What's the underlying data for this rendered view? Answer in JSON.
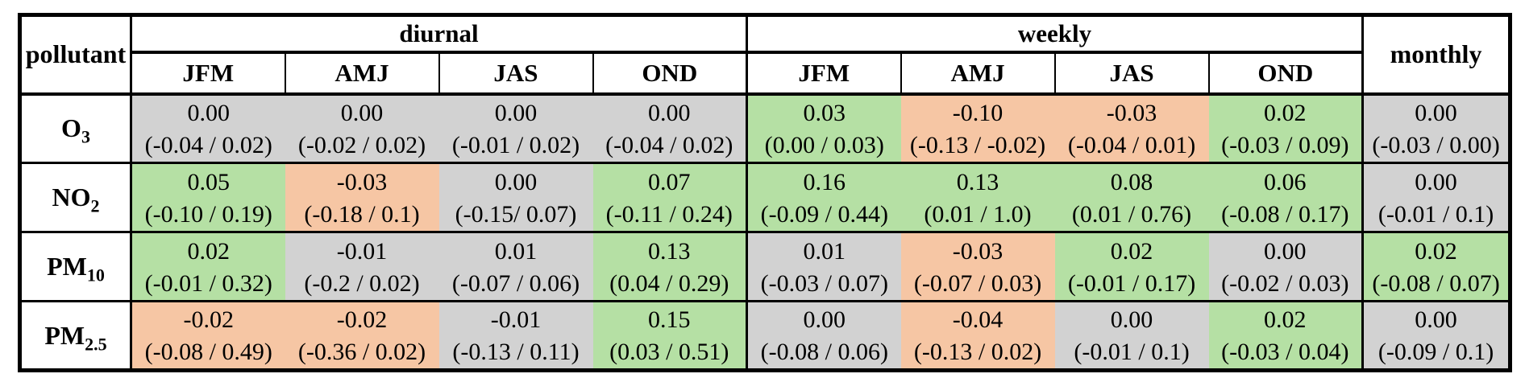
{
  "table": {
    "corner_label": "pollutant",
    "monthly_label": "monthly",
    "groups": [
      {
        "label": "diurnal",
        "columns": [
          "JFM",
          "AMJ",
          "JAS",
          "OND"
        ]
      },
      {
        "label": "weekly",
        "columns": [
          "JFM",
          "AMJ",
          "JAS",
          "OND"
        ]
      }
    ],
    "colors": {
      "positive": "#b5e0a4",
      "negative": "#f6c6a4",
      "neutral": "#d2d2d2"
    },
    "rows": [
      {
        "label_base": "O",
        "label_sub": "3",
        "cells": [
          {
            "value": "0.00",
            "ci": "(-0.04 / 0.02)",
            "color": "neutral"
          },
          {
            "value": "0.00",
            "ci": "(-0.02 / 0.02)",
            "color": "neutral"
          },
          {
            "value": "0.00",
            "ci": "(-0.01 / 0.02)",
            "color": "neutral"
          },
          {
            "value": "0.00",
            "ci": "(-0.04 / 0.02)",
            "color": "neutral"
          },
          {
            "value": "0.03",
            "ci": "(0.00 / 0.03)",
            "color": "positive"
          },
          {
            "value": "-0.10",
            "ci": "(-0.13 / -0.02)",
            "color": "negative"
          },
          {
            "value": "-0.03",
            "ci": "(-0.04 / 0.01)",
            "color": "negative"
          },
          {
            "value": "0.02",
            "ci": "(-0.03 / 0.09)",
            "color": "positive"
          },
          {
            "value": "0.00",
            "ci": "(-0.03 / 0.00)",
            "color": "neutral"
          }
        ]
      },
      {
        "label_base": "NO",
        "label_sub": "2",
        "cells": [
          {
            "value": "0.05",
            "ci": "(-0.10 / 0.19)",
            "color": "positive"
          },
          {
            "value": "-0.03",
            "ci": "(-0.18 / 0.1)",
            "color": "negative"
          },
          {
            "value": "0.00",
            "ci": "(-0.15/ 0.07)",
            "color": "neutral"
          },
          {
            "value": "0.07",
            "ci": "(-0.11 / 0.24)",
            "color": "positive"
          },
          {
            "value": "0.16",
            "ci": "(-0.09 / 0.44)",
            "color": "positive"
          },
          {
            "value": "0.13",
            "ci": "(0.01 / 1.0)",
            "color": "positive"
          },
          {
            "value": "0.08",
            "ci": "(0.01 / 0.76)",
            "color": "positive"
          },
          {
            "value": "0.06",
            "ci": "(-0.08 / 0.17)",
            "color": "positive"
          },
          {
            "value": "0.00",
            "ci": "(-0.01 / 0.1)",
            "color": "neutral"
          }
        ]
      },
      {
        "label_base": "PM",
        "label_sub": "10",
        "cells": [
          {
            "value": "0.02",
            "ci": "(-0.01 / 0.32)",
            "color": "positive"
          },
          {
            "value": "-0.01",
            "ci": "(-0.2 / 0.02)",
            "color": "neutral"
          },
          {
            "value": "0.01",
            "ci": "(-0.07 / 0.06)",
            "color": "neutral"
          },
          {
            "value": "0.13",
            "ci": "(0.04 / 0.29)",
            "color": "positive"
          },
          {
            "value": "0.01",
            "ci": "(-0.03 / 0.07)",
            "color": "neutral"
          },
          {
            "value": "-0.03",
            "ci": "(-0.07 / 0.03)",
            "color": "negative"
          },
          {
            "value": "0.02",
            "ci": "(-0.01 / 0.17)",
            "color": "positive"
          },
          {
            "value": "0.00",
            "ci": "(-0.02 / 0.03)",
            "color": "neutral"
          },
          {
            "value": "0.02",
            "ci": "(-0.08 / 0.07)",
            "color": "positive"
          }
        ]
      },
      {
        "label_base": "PM",
        "label_sub": "2.5",
        "cells": [
          {
            "value": "-0.02",
            "ci": "(-0.08 / 0.49)",
            "color": "negative"
          },
          {
            "value": "-0.02",
            "ci": "(-0.36 / 0.02)",
            "color": "negative"
          },
          {
            "value": "-0.01",
            "ci": "(-0.13 / 0.11)",
            "color": "neutral"
          },
          {
            "value": "0.15",
            "ci": "(0.03 / 0.51)",
            "color": "positive"
          },
          {
            "value": "0.00",
            "ci": "(-0.08 / 0.06)",
            "color": "neutral"
          },
          {
            "value": "-0.04",
            "ci": "(-0.13 / 0.02)",
            "color": "negative"
          },
          {
            "value": "0.00",
            "ci": "(-0.01 / 0.1)",
            "color": "neutral"
          },
          {
            "value": "0.02",
            "ci": "(-0.03 / 0.04)",
            "color": "positive"
          },
          {
            "value": "0.00",
            "ci": "(-0.09 / 0.1)",
            "color": "neutral"
          }
        ]
      }
    ]
  },
  "chart_data": {
    "type": "table",
    "title": "",
    "row_labels": [
      "O3",
      "NO2",
      "PM10",
      "PM2.5"
    ],
    "columns": [
      "diurnal JFM",
      "diurnal AMJ",
      "diurnal JAS",
      "diurnal OND",
      "weekly JFM",
      "weekly AMJ",
      "weekly JAS",
      "weekly OND",
      "monthly"
    ],
    "values": [
      [
        0.0,
        0.0,
        0.0,
        0.0,
        0.03,
        -0.1,
        -0.03,
        0.02,
        0.0
      ],
      [
        0.05,
        -0.03,
        0.0,
        0.07,
        0.16,
        0.13,
        0.08,
        0.06,
        0.0
      ],
      [
        0.02,
        -0.01,
        0.01,
        0.13,
        0.01,
        -0.03,
        0.02,
        0.0,
        0.02
      ],
      [
        -0.02,
        -0.02,
        -0.01,
        0.15,
        0.0,
        -0.04,
        0.0,
        0.02,
        0.0
      ]
    ],
    "ci_bounds": [
      [
        [
          -0.04,
          0.02
        ],
        [
          -0.02,
          0.02
        ],
        [
          -0.01,
          0.02
        ],
        [
          -0.04,
          0.02
        ],
        [
          0.0,
          0.03
        ],
        [
          -0.13,
          -0.02
        ],
        [
          -0.04,
          0.01
        ],
        [
          -0.03,
          0.09
        ],
        [
          -0.03,
          0.0
        ]
      ],
      [
        [
          -0.1,
          0.19
        ],
        [
          -0.18,
          0.1
        ],
        [
          -0.15,
          0.07
        ],
        [
          -0.11,
          0.24
        ],
        [
          -0.09,
          0.44
        ],
        [
          0.01,
          1.0
        ],
        [
          0.01,
          0.76
        ],
        [
          -0.08,
          0.17
        ],
        [
          -0.01,
          0.1
        ]
      ],
      [
        [
          -0.01,
          0.32
        ],
        [
          -0.2,
          0.02
        ],
        [
          -0.07,
          0.06
        ],
        [
          0.04,
          0.29
        ],
        [
          -0.03,
          0.07
        ],
        [
          -0.07,
          0.03
        ],
        [
          -0.01,
          0.17
        ],
        [
          -0.02,
          0.03
        ],
        [
          -0.08,
          0.07
        ]
      ],
      [
        [
          -0.08,
          0.49
        ],
        [
          -0.36,
          0.02
        ],
        [
          -0.13,
          0.11
        ],
        [
          0.03,
          0.51
        ],
        [
          -0.08,
          0.06
        ],
        [
          -0.13,
          0.02
        ],
        [
          -0.01,
          0.1
        ],
        [
          -0.03,
          0.04
        ],
        [
          -0.09,
          0.1
        ]
      ]
    ],
    "cell_colors": [
      [
        "neutral",
        "neutral",
        "neutral",
        "neutral",
        "positive",
        "negative",
        "negative",
        "positive",
        "neutral"
      ],
      [
        "positive",
        "negative",
        "neutral",
        "positive",
        "positive",
        "positive",
        "positive",
        "positive",
        "neutral"
      ],
      [
        "positive",
        "neutral",
        "neutral",
        "positive",
        "neutral",
        "negative",
        "positive",
        "neutral",
        "positive"
      ],
      [
        "negative",
        "negative",
        "neutral",
        "positive",
        "neutral",
        "negative",
        "neutral",
        "positive",
        "neutral"
      ]
    ],
    "legend_position": "none",
    "grid": true
  }
}
